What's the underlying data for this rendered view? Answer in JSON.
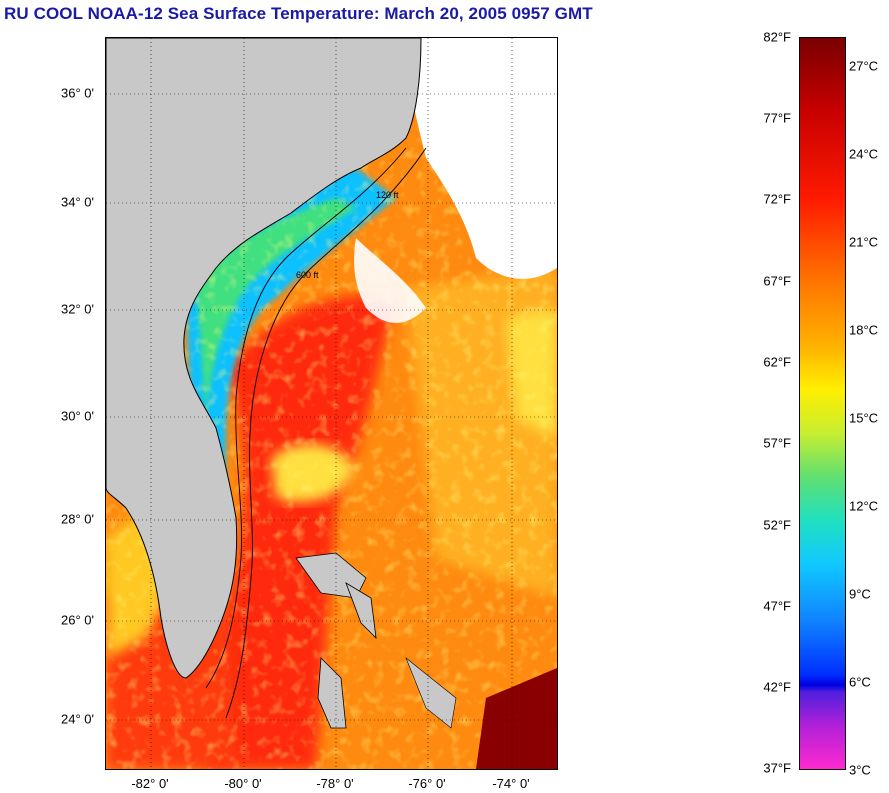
{
  "title": "RU COOL  NOAA-12  Sea Surface Temperature:  March 20, 2005 0957 GMT",
  "map": {
    "lat_labels": [
      "36° 0'",
      "34° 0'",
      "32° 0'",
      "30° 0'",
      "28° 0'",
      "26° 0'",
      "24° 0'"
    ],
    "lon_labels": [
      "-82° 0'",
      "-80° 0'",
      "-78° 0'",
      "-76° 0'",
      "-74° 0'"
    ],
    "contour_labels": [
      "120 ft",
      "600 ft"
    ],
    "colors": {
      "land": "#c8c8c8",
      "cloud": "#ffffff",
      "warm": "#ff3a10",
      "cool": "#10c8ff"
    }
  },
  "colorbar": {
    "fahrenheit": [
      "82°F",
      "77°F",
      "72°F",
      "67°F",
      "62°F",
      "57°F",
      "52°F",
      "47°F",
      "42°F",
      "37°F"
    ],
    "celsius": [
      "27°C",
      "24°C",
      "21°C",
      "18°C",
      "15°C",
      "12°C",
      "9°C",
      "6°C",
      "3°C"
    ]
  }
}
